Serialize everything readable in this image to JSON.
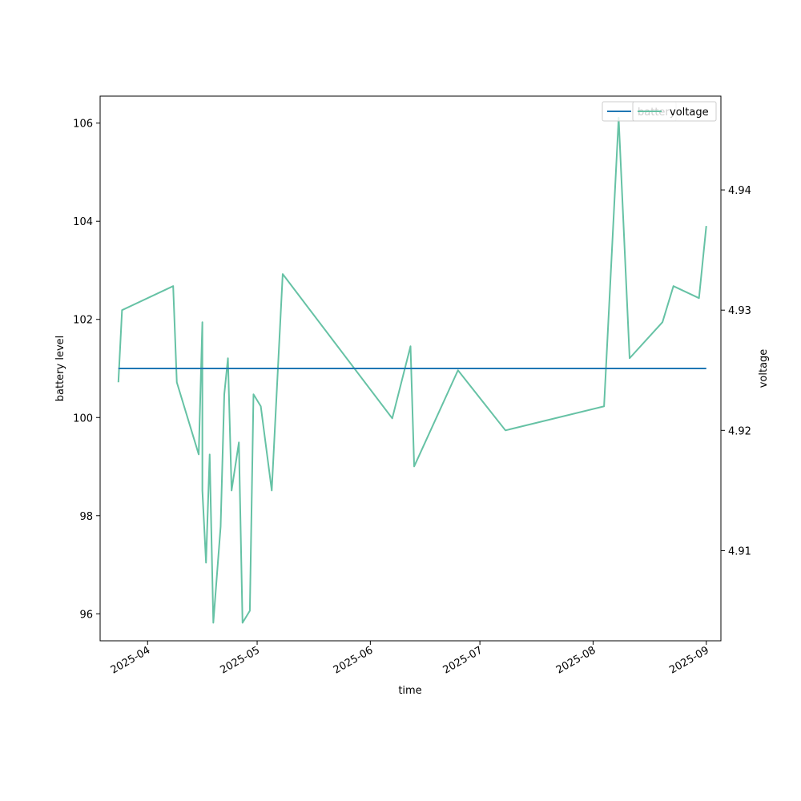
{
  "chart_data": {
    "type": "line",
    "xlabel": "time",
    "ylabel": "battery level",
    "y2label": "voltage",
    "xlim": [
      "2025-03-19",
      "2025-09-05"
    ],
    "ylim": [
      95.45,
      106.55
    ],
    "y2lim": [
      4.9025,
      4.9478
    ],
    "grid": false,
    "x_ticks": [
      {
        "date": "2025-04-01",
        "label": "2025-04"
      },
      {
        "date": "2025-05-01",
        "label": "2025-05"
      },
      {
        "date": "2025-06-01",
        "label": "2025-06"
      },
      {
        "date": "2025-07-01",
        "label": "2025-07"
      },
      {
        "date": "2025-08-01",
        "label": "2025-08"
      },
      {
        "date": "2025-09-01",
        "label": "2025-09"
      }
    ],
    "y_ticks": [
      96,
      98,
      100,
      102,
      104,
      106
    ],
    "y2_ticks": [
      4.91,
      4.92,
      4.93,
      4.94
    ],
    "y2_tick_labels": [
      "4.91",
      "4.92",
      "4.93",
      "4.94"
    ],
    "series": [
      {
        "name": "battery",
        "axis": "left",
        "color": "#1f77b4",
        "legend": "top-right",
        "points": [
          {
            "x": "2025-03-24",
            "y": 101
          },
          {
            "x": "2025-09-01",
            "y": 101
          }
        ]
      },
      {
        "name": "voltage",
        "axis": "right",
        "color": "#66c2a5",
        "legend": "top-right",
        "points": [
          {
            "x": "2025-03-24",
            "y": 4.924
          },
          {
            "x": "2025-03-25",
            "y": 4.93
          },
          {
            "x": "2025-04-08",
            "y": 4.932
          },
          {
            "x": "2025-04-09",
            "y": 4.924
          },
          {
            "x": "2025-04-15",
            "y": 4.918
          },
          {
            "x": "2025-04-16",
            "y": 4.929
          },
          {
            "x": "2025-04-16",
            "y": 4.915
          },
          {
            "x": "2025-04-17",
            "y": 4.909
          },
          {
            "x": "2025-04-18",
            "y": 4.918
          },
          {
            "x": "2025-04-19",
            "y": 4.904
          },
          {
            "x": "2025-04-21",
            "y": 4.912
          },
          {
            "x": "2025-04-22",
            "y": 4.923
          },
          {
            "x": "2025-04-23",
            "y": 4.926
          },
          {
            "x": "2025-04-24",
            "y": 4.915
          },
          {
            "x": "2025-04-26",
            "y": 4.919
          },
          {
            "x": "2025-04-27",
            "y": 4.904
          },
          {
            "x": "2025-04-29",
            "y": 4.905
          },
          {
            "x": "2025-04-30",
            "y": 4.923
          },
          {
            "x": "2025-05-02",
            "y": 4.922
          },
          {
            "x": "2025-05-05",
            "y": 4.915
          },
          {
            "x": "2025-05-08",
            "y": 4.933
          },
          {
            "x": "2025-06-07",
            "y": 4.921
          },
          {
            "x": "2025-06-12",
            "y": 4.927
          },
          {
            "x": "2025-06-13",
            "y": 4.917
          },
          {
            "x": "2025-06-25",
            "y": 4.925
          },
          {
            "x": "2025-07-08",
            "y": 4.92
          },
          {
            "x": "2025-08-04",
            "y": 4.922
          },
          {
            "x": "2025-08-08",
            "y": 4.946
          },
          {
            "x": "2025-08-11",
            "y": 4.926
          },
          {
            "x": "2025-08-20",
            "y": 4.929
          },
          {
            "x": "2025-08-23",
            "y": 4.932
          },
          {
            "x": "2025-08-30",
            "y": 4.931
          },
          {
            "x": "2025-09-01",
            "y": 4.937
          }
        ]
      }
    ]
  }
}
